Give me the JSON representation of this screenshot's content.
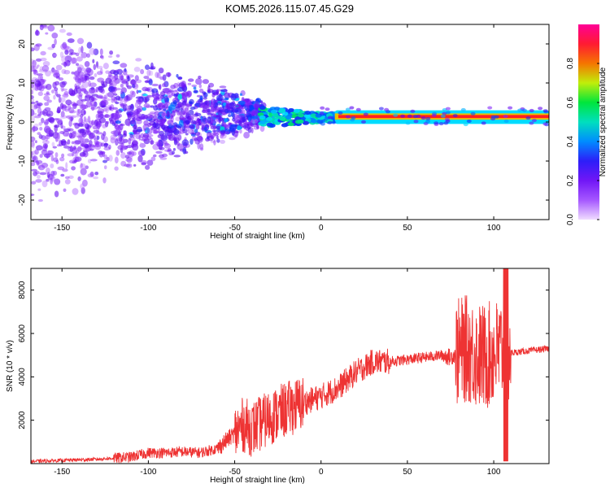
{
  "title": "KOM5.2026.115.07.45.G29",
  "chart_data": [
    {
      "type": "heatmap",
      "xlabel": "Height of straight line (km)",
      "ylabel": "Frequency (Hz)",
      "xlim": [
        -168,
        132
      ],
      "ylim": [
        -25,
        25
      ],
      "xticks": [
        -150,
        -100,
        -50,
        0,
        50,
        100
      ],
      "yticks": [
        -20,
        -10,
        0,
        10,
        20
      ],
      "colorbar": {
        "label": "Normalized spectral amplitude",
        "range": [
          0,
          1
        ],
        "ticks": [
          0.0,
          0.2,
          0.4,
          0.6,
          0.8
        ],
        "stops": [
          "#ffffff",
          "#7a00ff",
          "#0000ff",
          "#00ffff",
          "#00ff00",
          "#ffff00",
          "#ff0000",
          "#ff0088"
        ]
      },
      "description_points": [
        {
          "x": -150,
          "spread": 25,
          "amp": 0.15
        },
        {
          "x": -100,
          "spread": 12,
          "amp": 0.2
        },
        {
          "x": -50,
          "spread": 6,
          "amp": 0.3
        },
        {
          "x": -30,
          "spread": 2,
          "amp": 0.45
        },
        {
          "x": 10,
          "center": 1.5,
          "amp": 0.85
        },
        {
          "x": 60,
          "center": 1.5,
          "amp": 0.9
        },
        {
          "x": 130,
          "center": 2.5,
          "amp": 0.9
        }
      ]
    },
    {
      "type": "line",
      "xlabel": "Height of straight line (km)",
      "ylabel": "SNR (10 * v/v)",
      "xlim": [
        -168,
        132
      ],
      "ylim": [
        0,
        9000
      ],
      "xticks": [
        -150,
        -100,
        -50,
        0,
        50,
        100
      ],
      "yticks": [
        2000,
        4000,
        6000,
        8000
      ],
      "series": [
        {
          "color": "#ee3333",
          "x": [
            -168,
            -150,
            -130,
            -110,
            -100,
            -90,
            -80,
            -70,
            -60,
            -50,
            -45,
            -40,
            -30,
            -20,
            -10,
            0,
            10,
            20,
            30,
            40,
            50,
            60,
            70,
            75,
            80,
            85,
            90,
            95,
            100,
            105,
            108,
            110,
            120,
            132
          ],
          "y": [
            100,
            150,
            200,
            300,
            500,
            500,
            550,
            500,
            700,
            1400,
            1800,
            1600,
            2100,
            2500,
            2800,
            3100,
            3500,
            4200,
            4700,
            4700,
            4800,
            4900,
            5000,
            4900,
            5200,
            5300,
            5000,
            4900,
            5100,
            5200,
            5100,
            5100,
            5200,
            5300
          ]
        }
      ]
    }
  ]
}
